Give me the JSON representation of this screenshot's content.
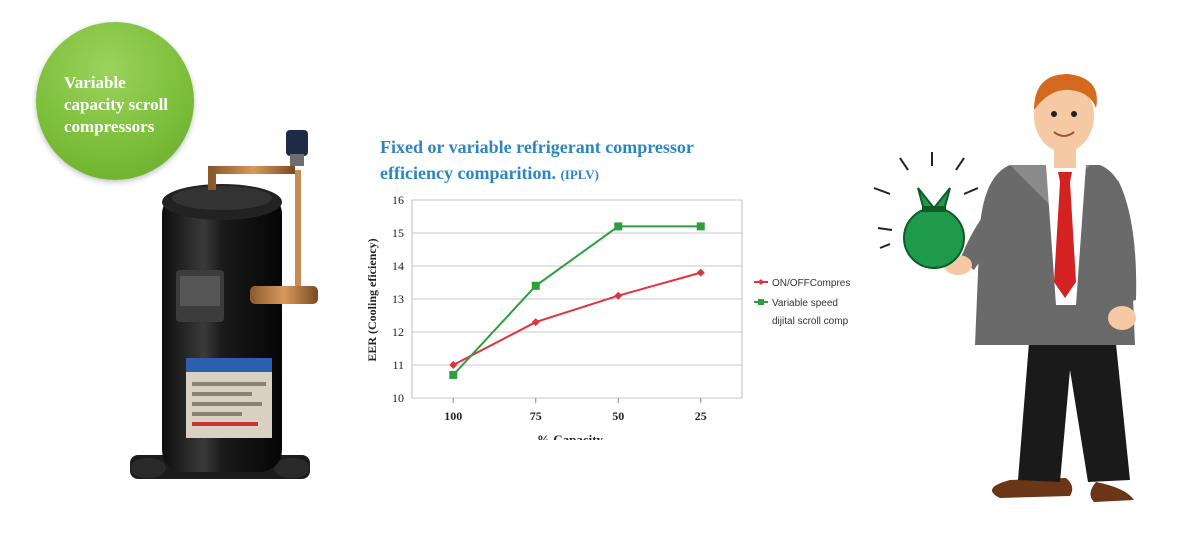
{
  "badge": {
    "line1": "Variable",
    "line2": "capacity scroll",
    "line3": "compressors"
  },
  "chart_title": {
    "line1": "Fixed or variable refrigerant compressor",
    "line2_main": "efficiency comparition.",
    "line2_sub": "(IPLV)"
  },
  "colors": {
    "title_blue": "#2d86c2",
    "badge_green": "#7cbf3a",
    "series_red": "#e0333d",
    "series_green": "#2f9e3f"
  },
  "chart_data": {
    "type": "line",
    "title": "Fixed or variable refrigerant compressor efficiency comparition. (IPLV)",
    "xlabel": "% Capacity",
    "ylabel": "EER (Cooling eficiency)",
    "categories": [
      "100",
      "75",
      "50",
      "25"
    ],
    "ylim": [
      10,
      16
    ],
    "yticks": [
      "10",
      "11",
      "12",
      "13",
      "14",
      "15",
      "16"
    ],
    "grid": true,
    "legend": "right",
    "series": [
      {
        "name": "ON/OFFCompres",
        "color": "#e0333d",
        "marker": "diamond",
        "values": [
          11.0,
          12.3,
          13.1,
          13.8
        ]
      },
      {
        "name": "Variable speed dijital scroll comp",
        "color": "#2f9e3f",
        "marker": "square",
        "values": [
          10.7,
          13.4,
          15.2,
          15.2
        ]
      }
    ],
    "legend_lines": [
      "ON/OFFCompres",
      "Variable speed",
      "dijital scroll comp"
    ]
  }
}
